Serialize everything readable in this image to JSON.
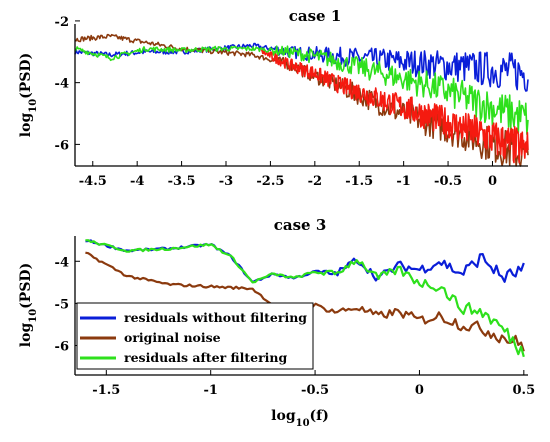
{
  "chart_data": [
    {
      "type": "line",
      "title": "case 1",
      "xlabel": "",
      "ylabel": "log10(PSD)",
      "xlim": [
        -4.7,
        0.4
      ],
      "ylim": [
        -6.7,
        -2.1
      ],
      "xticks": [
        -4.5,
        -4,
        -3.5,
        -3,
        -2.5,
        -2,
        -1.5,
        -1,
        -0.5,
        0
      ],
      "xtick_labels": [
        "-4.5",
        "-4",
        "-3.5",
        "-3",
        "-2.5",
        "-2",
        "-1.5",
        "-1",
        "-0.5",
        "0"
      ],
      "yticks": [
        -2,
        -4,
        -6
      ],
      "ytick_labels": [
        "-2",
        "-4",
        "-6"
      ],
      "grid": false,
      "series": [
        {
          "name": "residuals without filtering",
          "color": "#0a1ed8",
          "x": [
            -4.7,
            -4.3,
            -3.9,
            -3.5,
            -3.1,
            -2.7,
            -2.3,
            -1.9,
            -1.5,
            -1.1,
            -0.7,
            -0.3,
            0.1,
            0.4
          ],
          "y": [
            -3.0,
            -3.1,
            -3.0,
            -3.0,
            -2.9,
            -2.8,
            -3.0,
            -3.1,
            -3.2,
            -3.3,
            -3.4,
            -3.5,
            -3.6,
            -3.7
          ]
        },
        {
          "name": "original noise",
          "color": "#8b3a0e",
          "x": [
            -4.7,
            -4.3,
            -3.9,
            -3.5,
            -3.1,
            -2.7,
            -2.3,
            -1.9,
            -1.5,
            -1.1,
            -0.7,
            -0.3,
            0.1,
            0.4
          ],
          "y": [
            -2.6,
            -2.5,
            -2.7,
            -2.9,
            -3.0,
            -3.1,
            -3.4,
            -3.9,
            -4.4,
            -4.9,
            -5.3,
            -5.7,
            -6.1,
            -6.4
          ]
        },
        {
          "name": "residuals after filtering",
          "color": "#2ee01c",
          "x": [
            -4.7,
            -4.3,
            -3.9,
            -3.5,
            -3.1,
            -2.7,
            -2.3,
            -1.9,
            -1.5,
            -1.1,
            -0.7,
            -0.3,
            0.1,
            0.4
          ],
          "y": [
            -2.9,
            -3.2,
            -2.9,
            -2.95,
            -2.9,
            -2.9,
            -3.0,
            -3.2,
            -3.5,
            -3.8,
            -4.1,
            -4.5,
            -4.9,
            -5.2
          ]
        },
        {
          "color": "#f51a10",
          "x": [
            -2.6,
            -2.3,
            -2.0,
            -1.7,
            -1.4,
            -1.1,
            -0.8,
            -0.5,
            -0.2,
            0.1,
            0.4
          ],
          "y": [
            -3.0,
            -3.4,
            -3.7,
            -4.1,
            -4.4,
            -4.7,
            -5.0,
            -5.3,
            -5.6,
            -5.9,
            -6.2
          ]
        }
      ]
    },
    {
      "type": "line",
      "title": "case 3",
      "xlabel": "log10(f)",
      "ylabel": "log10(PSD)",
      "xlim": [
        -1.65,
        0.52
      ],
      "ylim": [
        -6.7,
        -3.4
      ],
      "xticks": [
        -1.5,
        -1,
        -0.5,
        0,
        0.5
      ],
      "xtick_labels": [
        "-1.5",
        "-1",
        "-0.5",
        "0",
        "0.5"
      ],
      "yticks": [
        -4,
        -5,
        -6
      ],
      "ytick_labels": [
        "-4",
        "-5",
        "-6"
      ],
      "grid": false,
      "legend_position": "bottom-left",
      "series": [
        {
          "name": "residuals without filtering",
          "color": "#0a1ed8",
          "x": [
            -1.6,
            -1.4,
            -1.2,
            -1.0,
            -0.9,
            -0.8,
            -0.7,
            -0.6,
            -0.5,
            -0.4,
            -0.3,
            -0.2,
            -0.1,
            0.0,
            0.1,
            0.2,
            0.3,
            0.4,
            0.5
          ],
          "y": [
            -3.5,
            -3.75,
            -3.7,
            -3.6,
            -3.9,
            -4.5,
            -4.3,
            -4.4,
            -4.25,
            -4.3,
            -3.95,
            -4.4,
            -4.1,
            -4.2,
            -4.0,
            -4.3,
            -3.9,
            -4.4,
            -4.2
          ]
        },
        {
          "name": "original noise",
          "color": "#8b3a0e",
          "x": [
            -1.6,
            -1.4,
            -1.2,
            -1.0,
            -0.8,
            -0.7,
            -0.6,
            -0.5,
            -0.4,
            -0.3,
            -0.2,
            -0.1,
            0.0,
            0.1,
            0.2,
            0.3,
            0.4,
            0.5
          ],
          "y": [
            -3.8,
            -4.35,
            -4.55,
            -4.6,
            -4.65,
            -5.05,
            -5.1,
            -5.05,
            -5.2,
            -5.1,
            -5.3,
            -5.2,
            -5.4,
            -5.3,
            -5.5,
            -5.6,
            -5.8,
            -6.0
          ]
        },
        {
          "name": "residuals after filtering",
          "color": "#2ee01c",
          "x": [
            -1.6,
            -1.4,
            -1.2,
            -1.0,
            -0.9,
            -0.8,
            -0.7,
            -0.6,
            -0.5,
            -0.4,
            -0.3,
            -0.2,
            -0.1,
            0.0,
            0.1,
            0.2,
            0.3,
            0.4,
            0.5
          ],
          "y": [
            -3.5,
            -3.75,
            -3.7,
            -3.6,
            -3.9,
            -4.5,
            -4.3,
            -4.4,
            -4.25,
            -4.3,
            -3.95,
            -4.4,
            -4.2,
            -4.5,
            -4.6,
            -5.1,
            -5.2,
            -5.6,
            -6.2
          ]
        }
      ]
    }
  ],
  "legend_entries": [
    {
      "label": "residuals without filtering",
      "color": "#0a1ed8"
    },
    {
      "label": "original noise",
      "color": "#8b3a0e"
    },
    {
      "label": "residuals after filtering",
      "color": "#2ee01c"
    }
  ]
}
